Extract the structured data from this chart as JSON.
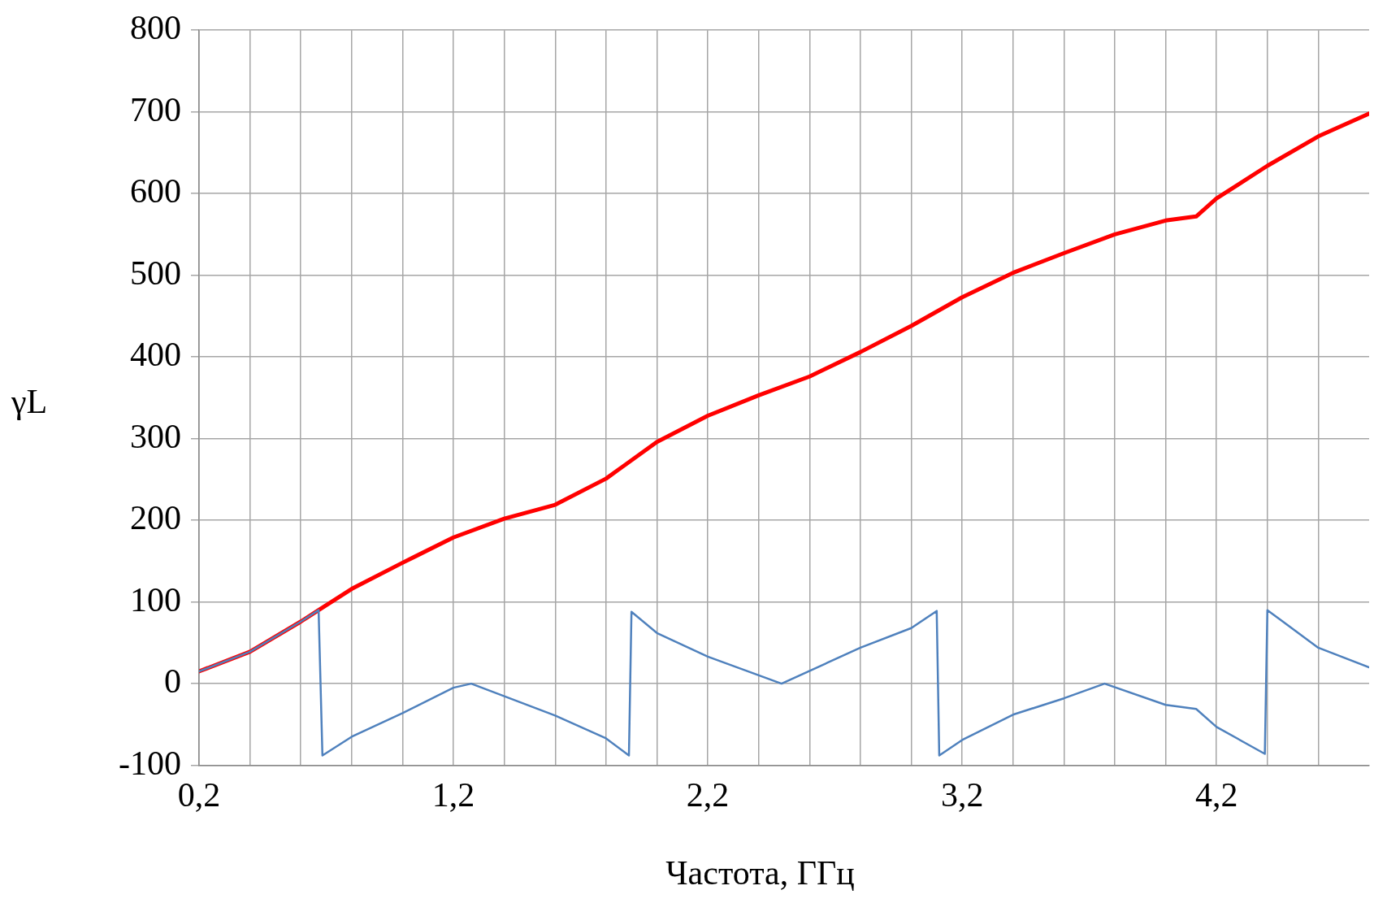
{
  "chart_data": {
    "type": "line",
    "xlabel": "Частота, ГГц",
    "ylabel": "γL",
    "xlim": [
      0.2,
      4.8
    ],
    "ylim": [
      -100,
      800
    ],
    "xticks": [
      {
        "value": 0.2,
        "label": "0,2"
      },
      {
        "value": 0.4,
        "label": null
      },
      {
        "value": 0.6,
        "label": null
      },
      {
        "value": 0.8,
        "label": null
      },
      {
        "value": 1.0,
        "label": null
      },
      {
        "value": 1.2,
        "label": "1,2"
      },
      {
        "value": 1.4,
        "label": null
      },
      {
        "value": 1.6,
        "label": null
      },
      {
        "value": 1.8,
        "label": null
      },
      {
        "value": 2.0,
        "label": null
      },
      {
        "value": 2.2,
        "label": "2,2"
      },
      {
        "value": 2.4,
        "label": null
      },
      {
        "value": 2.6,
        "label": null
      },
      {
        "value": 2.8,
        "label": null
      },
      {
        "value": 3.0,
        "label": null
      },
      {
        "value": 3.2,
        "label": "3,2"
      },
      {
        "value": 3.4,
        "label": null
      },
      {
        "value": 3.6,
        "label": null
      },
      {
        "value": 3.8,
        "label": null
      },
      {
        "value": 4.0,
        "label": null
      },
      {
        "value": 4.2,
        "label": "4,2"
      },
      {
        "value": 4.4,
        "label": null
      },
      {
        "value": 4.6,
        "label": null
      }
    ],
    "yticks": [
      -100,
      0,
      100,
      200,
      300,
      400,
      500,
      600,
      700,
      800
    ],
    "grid": true,
    "legend": false,
    "marker": "none",
    "line_style": "solid",
    "series": [
      {
        "color": "#ff0000",
        "x": [
          0.2,
          0.4,
          0.6,
          0.67,
          0.8,
          1.0,
          1.2,
          1.4,
          1.6,
          1.8,
          2.0,
          2.2,
          2.4,
          2.6,
          2.8,
          3.0,
          3.2,
          3.4,
          3.6,
          3.8,
          4.0,
          4.12,
          4.2,
          4.4,
          4.6,
          4.8
        ],
        "values": [
          15,
          39,
          76,
          90,
          116,
          148,
          179,
          202,
          219,
          251,
          296,
          328,
          353,
          376,
          406,
          438,
          473,
          503,
          527,
          550,
          567,
          572,
          594,
          634,
          670,
          698
        ]
      },
      {
        "color": "#4f81bd",
        "x": [
          0.2,
          0.4,
          0.6,
          0.67,
          0.685,
          0.8,
          1.0,
          1.2,
          1.27,
          1.6,
          1.8,
          1.89,
          1.9,
          2.0,
          2.2,
          2.49,
          2.8,
          3.0,
          3.1,
          3.11,
          3.2,
          3.4,
          3.6,
          3.76,
          4.0,
          4.12,
          4.2,
          4.39,
          4.4,
          4.6,
          4.8
        ],
        "values": [
          15,
          39,
          76,
          90,
          -88,
          -65,
          -36,
          -5,
          0,
          -39,
          -67,
          -88,
          88,
          62,
          33,
          0,
          44,
          68,
          89,
          -88,
          -69,
          -38,
          -18,
          0,
          -26,
          -31,
          -53,
          -86,
          90,
          44,
          20
        ]
      }
    ]
  }
}
